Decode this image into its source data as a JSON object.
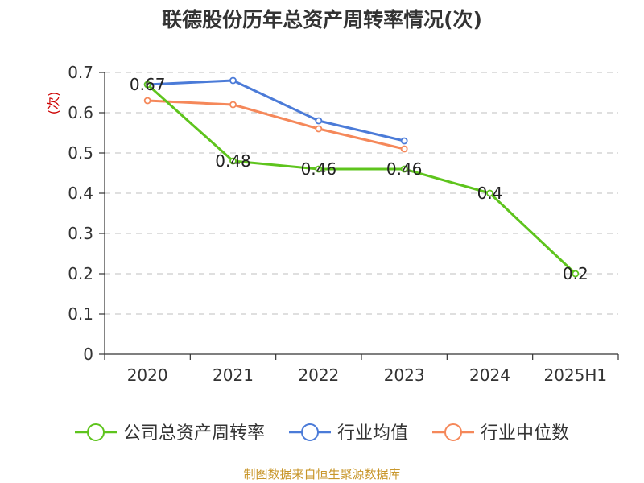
{
  "chart_data": {
    "type": "line",
    "title": "联德股份历年总资产周转率情况(次)",
    "ylabel": "(次)",
    "xlabel": "",
    "categories": [
      "2020",
      "2021",
      "2022",
      "2023",
      "2024",
      "2025H1"
    ],
    "yticks": [
      "0",
      "0.1",
      "0.2",
      "0.3",
      "0.4",
      "0.5",
      "0.6",
      "0.7"
    ],
    "ylim": [
      0,
      0.7
    ],
    "grid": true,
    "legend_position": "bottom",
    "series": [
      {
        "name": "公司总资产周转率",
        "color": "#5ec41d",
        "values": [
          0.67,
          0.48,
          0.46,
          0.46,
          0.4,
          0.2
        ],
        "labels": [
          "0.67",
          "0.48",
          "0.46",
          "0.46",
          "0.4",
          "0.2"
        ]
      },
      {
        "name": "行业均值",
        "color": "#4b7bd8",
        "values": [
          0.67,
          0.68,
          0.58,
          0.53,
          null,
          null
        ]
      },
      {
        "name": "行业中位数",
        "color": "#f5885a",
        "values": [
          0.63,
          0.62,
          0.56,
          0.51,
          null,
          null
        ]
      }
    ],
    "source": "制图数据来自恒生聚源数据库",
    "colors": {
      "ylabel": "#cc0000",
      "source": "#c8962a",
      "axis": "#333333",
      "grid": "#cccccc"
    }
  }
}
